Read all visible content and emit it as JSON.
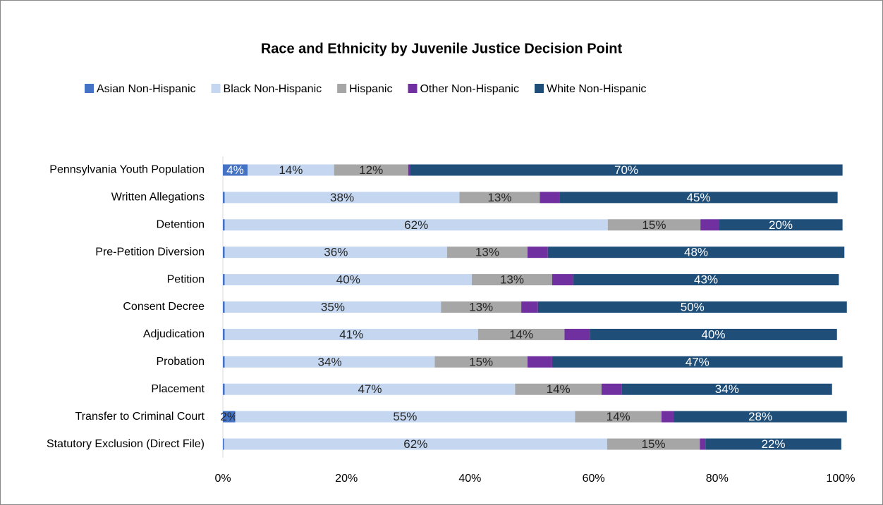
{
  "chart_data": {
    "type": "stacked_bar_horizontal",
    "title": "Race and Ethnicity by Juvenile Justice Decision Point",
    "categories": [
      "Pennsylvania Youth Population",
      "Written Allegations",
      "Detention",
      "Pre-Petition Diversion",
      "Petition",
      "Consent Decree",
      "Adjudication",
      "Probation",
      "Placement",
      "Transfer to Criminal Court",
      "Statutory Exclusion (Direct File)"
    ],
    "series": [
      {
        "name": "Asian Non-Hispanic",
        "color": "#4472c4",
        "values": [
          4,
          0.3,
          0.3,
          0.3,
          0.3,
          0.3,
          0.3,
          0.3,
          0.3,
          2,
          0.2
        ],
        "value_labels": [
          "4%",
          null,
          null,
          null,
          null,
          null,
          null,
          null,
          null,
          "2%",
          null
        ]
      },
      {
        "name": "Black Non-Hispanic",
        "color": "#c5d7f0",
        "values": [
          14,
          38,
          62,
          36,
          40,
          35,
          41,
          34,
          47,
          55,
          62
        ],
        "value_labels": [
          "14%",
          "38%",
          "62%",
          "36%",
          "40%",
          "35%",
          "41%",
          "34%",
          "47%",
          "55%",
          "62%"
        ]
      },
      {
        "name": "Hispanic",
        "color": "#a6a6a6",
        "values": [
          12,
          13,
          15,
          13,
          13,
          13,
          14,
          15,
          14,
          14,
          15
        ],
        "value_labels": [
          "12%",
          "13%",
          "15%",
          "13%",
          "13%",
          "13%",
          "14%",
          "15%",
          "14%",
          "14%",
          "15%"
        ]
      },
      {
        "name": "Other Non-Hispanic",
        "color": "#7030a0",
        "values": [
          0.3,
          3.2,
          3,
          3.3,
          3.4,
          2.7,
          4.1,
          4,
          3.3,
          2,
          0.9
        ]
      },
      {
        "name": "White Non-Hispanic",
        "color": "#1f4e79",
        "values": [
          70,
          45,
          20,
          48,
          43,
          50,
          40,
          47,
          34,
          28,
          22
        ],
        "value_labels": [
          "70%",
          "45%",
          "20%",
          "48%",
          "43%",
          "50%",
          "40%",
          "47%",
          "34%",
          "28%",
          "22%"
        ]
      }
    ],
    "xlim": [
      0,
      100
    ],
    "xticks": [
      {
        "value": 0,
        "label": "0%"
      },
      {
        "value": 20,
        "label": "20%"
      },
      {
        "value": 40,
        "label": "40%"
      },
      {
        "value": 60,
        "label": "60%"
      },
      {
        "value": 80,
        "label": "80%"
      },
      {
        "value": 100,
        "label": "100%"
      }
    ],
    "legend": "top"
  }
}
